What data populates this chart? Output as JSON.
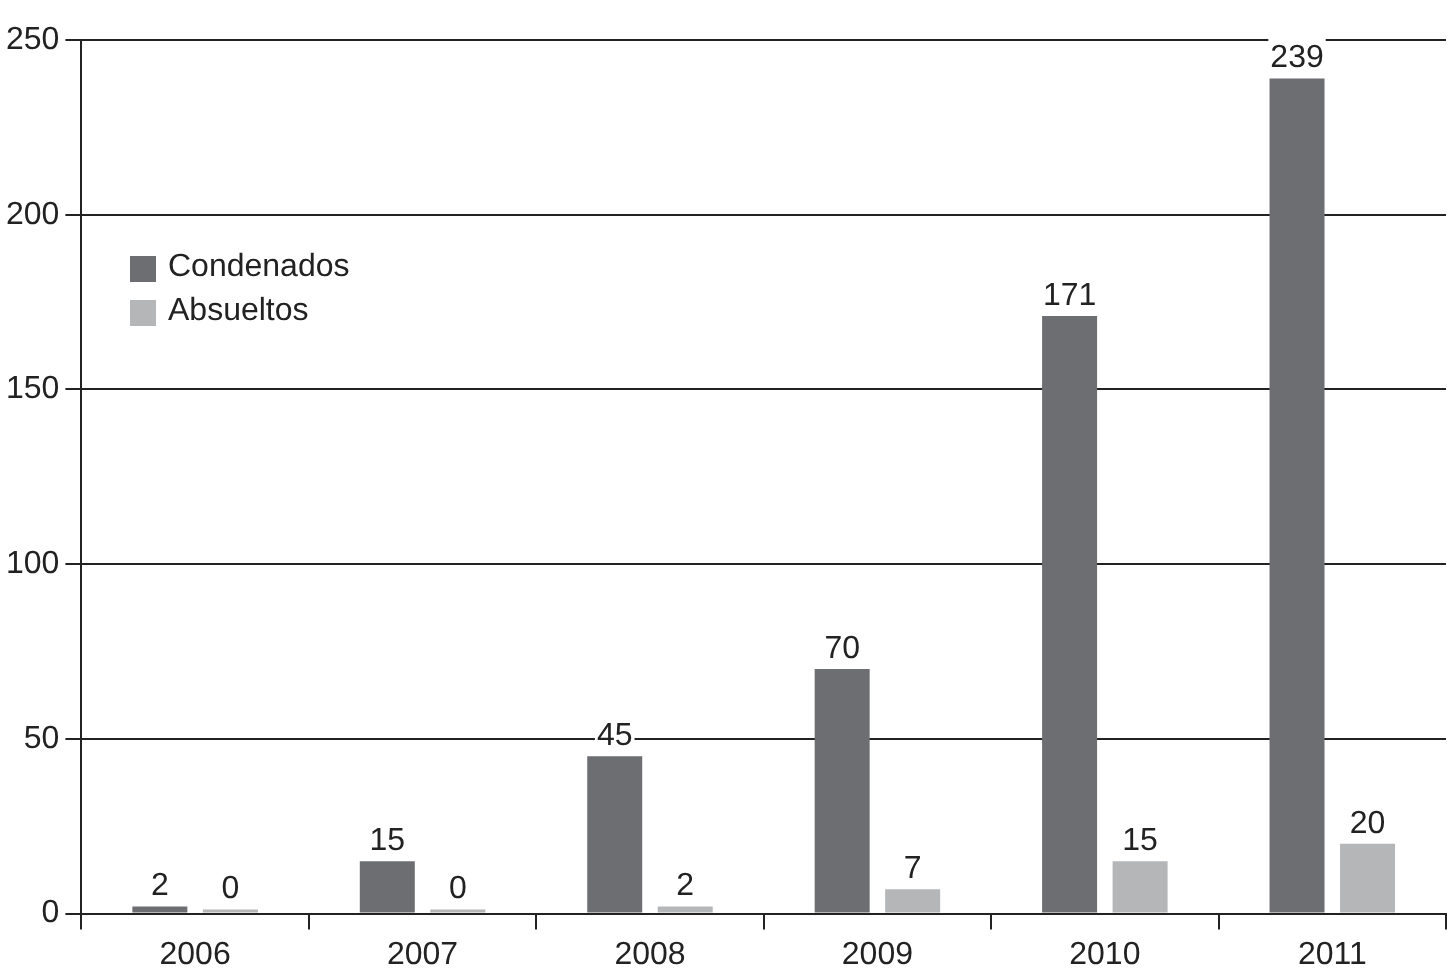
{
  "chart_data": {
    "type": "bar",
    "categories": [
      "2006",
      "2007",
      "2008",
      "2009",
      "2010",
      "2011"
    ],
    "series": [
      {
        "name": "Condenados",
        "color": "#6d6e71",
        "values": [
          2,
          15,
          45,
          70,
          171,
          239
        ]
      },
      {
        "name": "Absueltos",
        "color": "#b5b6b8",
        "values": [
          0,
          0,
          2,
          7,
          15,
          20
        ]
      }
    ],
    "ylim": [
      0,
      250
    ],
    "yticks": [
      0,
      50,
      100,
      150,
      200,
      250
    ],
    "grid": "y",
    "legend": "top left",
    "data_labels": true
  }
}
